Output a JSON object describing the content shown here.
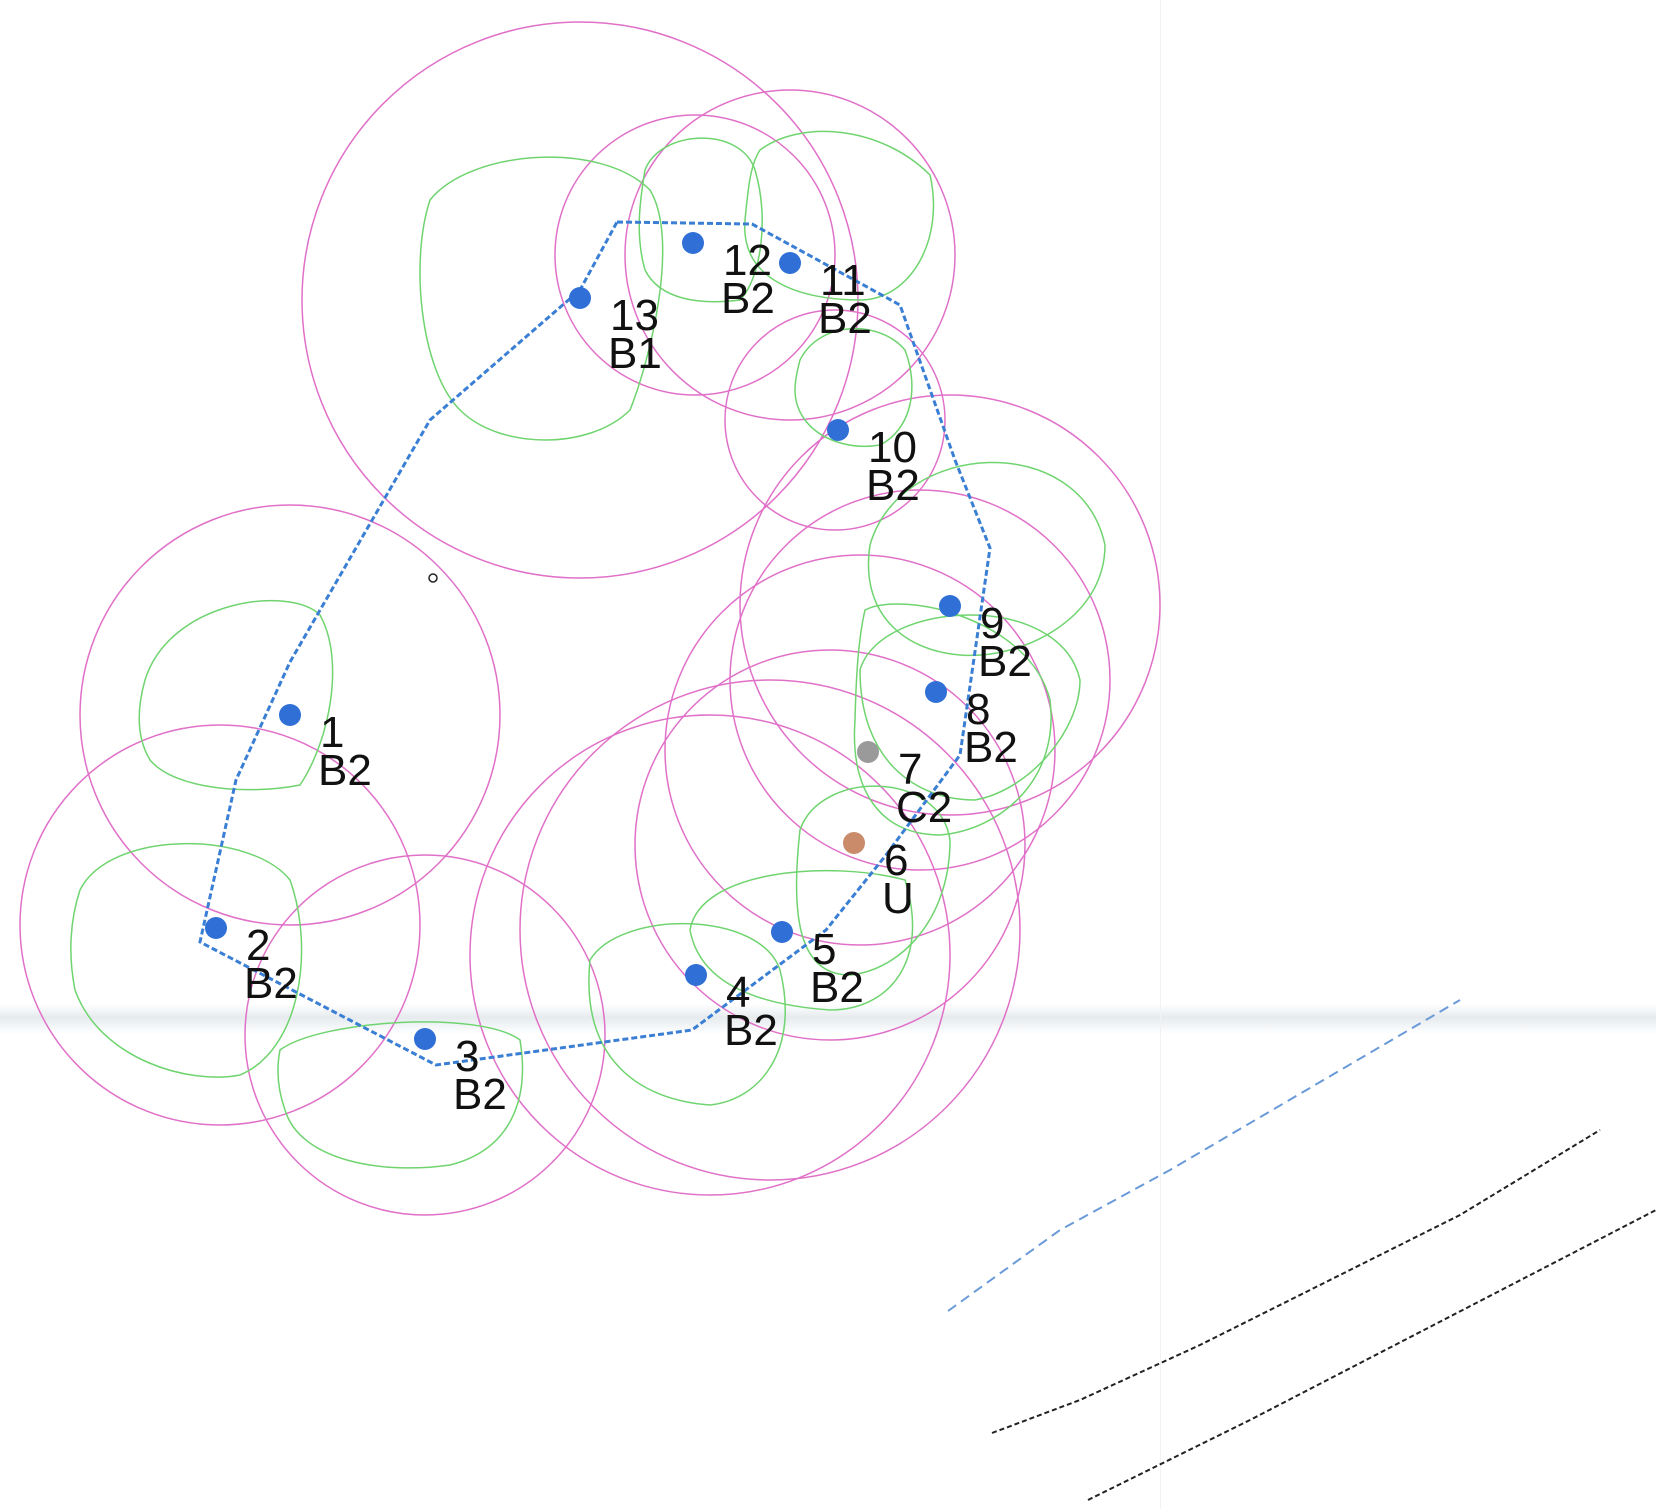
{
  "points": [
    {
      "num": "1",
      "cls": "B2",
      "color": "#2f6fd6"
    },
    {
      "num": "2",
      "cls": "B2",
      "color": "#2f6fd6"
    },
    {
      "num": "3",
      "cls": "B2",
      "color": "#2f6fd6"
    },
    {
      "num": "4",
      "cls": "B2",
      "color": "#2f6fd6"
    },
    {
      "num": "5",
      "cls": "B2",
      "color": "#2f6fd6"
    },
    {
      "num": "6",
      "cls": "U",
      "color": "#c98b6a"
    },
    {
      "num": "7",
      "cls": "C2",
      "color": "#9a9a9a"
    },
    {
      "num": "8",
      "cls": "B2",
      "color": "#2f6fd6"
    },
    {
      "num": "9",
      "cls": "B2",
      "color": "#2f6fd6"
    },
    {
      "num": "10",
      "cls": "B2",
      "color": "#2f6fd6"
    },
    {
      "num": "11",
      "cls": "B2",
      "color": "#2f6fd6"
    },
    {
      "num": "12",
      "cls": "B2",
      "color": "#2f6fd6"
    },
    {
      "num": "13",
      "cls": "B1",
      "color": "#2f6fd6"
    }
  ],
  "colors": {
    "outer_circle": "#e070c8",
    "inner_curve": "#6fd46f",
    "boundary": "#3a7fd4",
    "dashed_line_blue": "#6a9ad8",
    "dashed_line_black": "#222222"
  }
}
